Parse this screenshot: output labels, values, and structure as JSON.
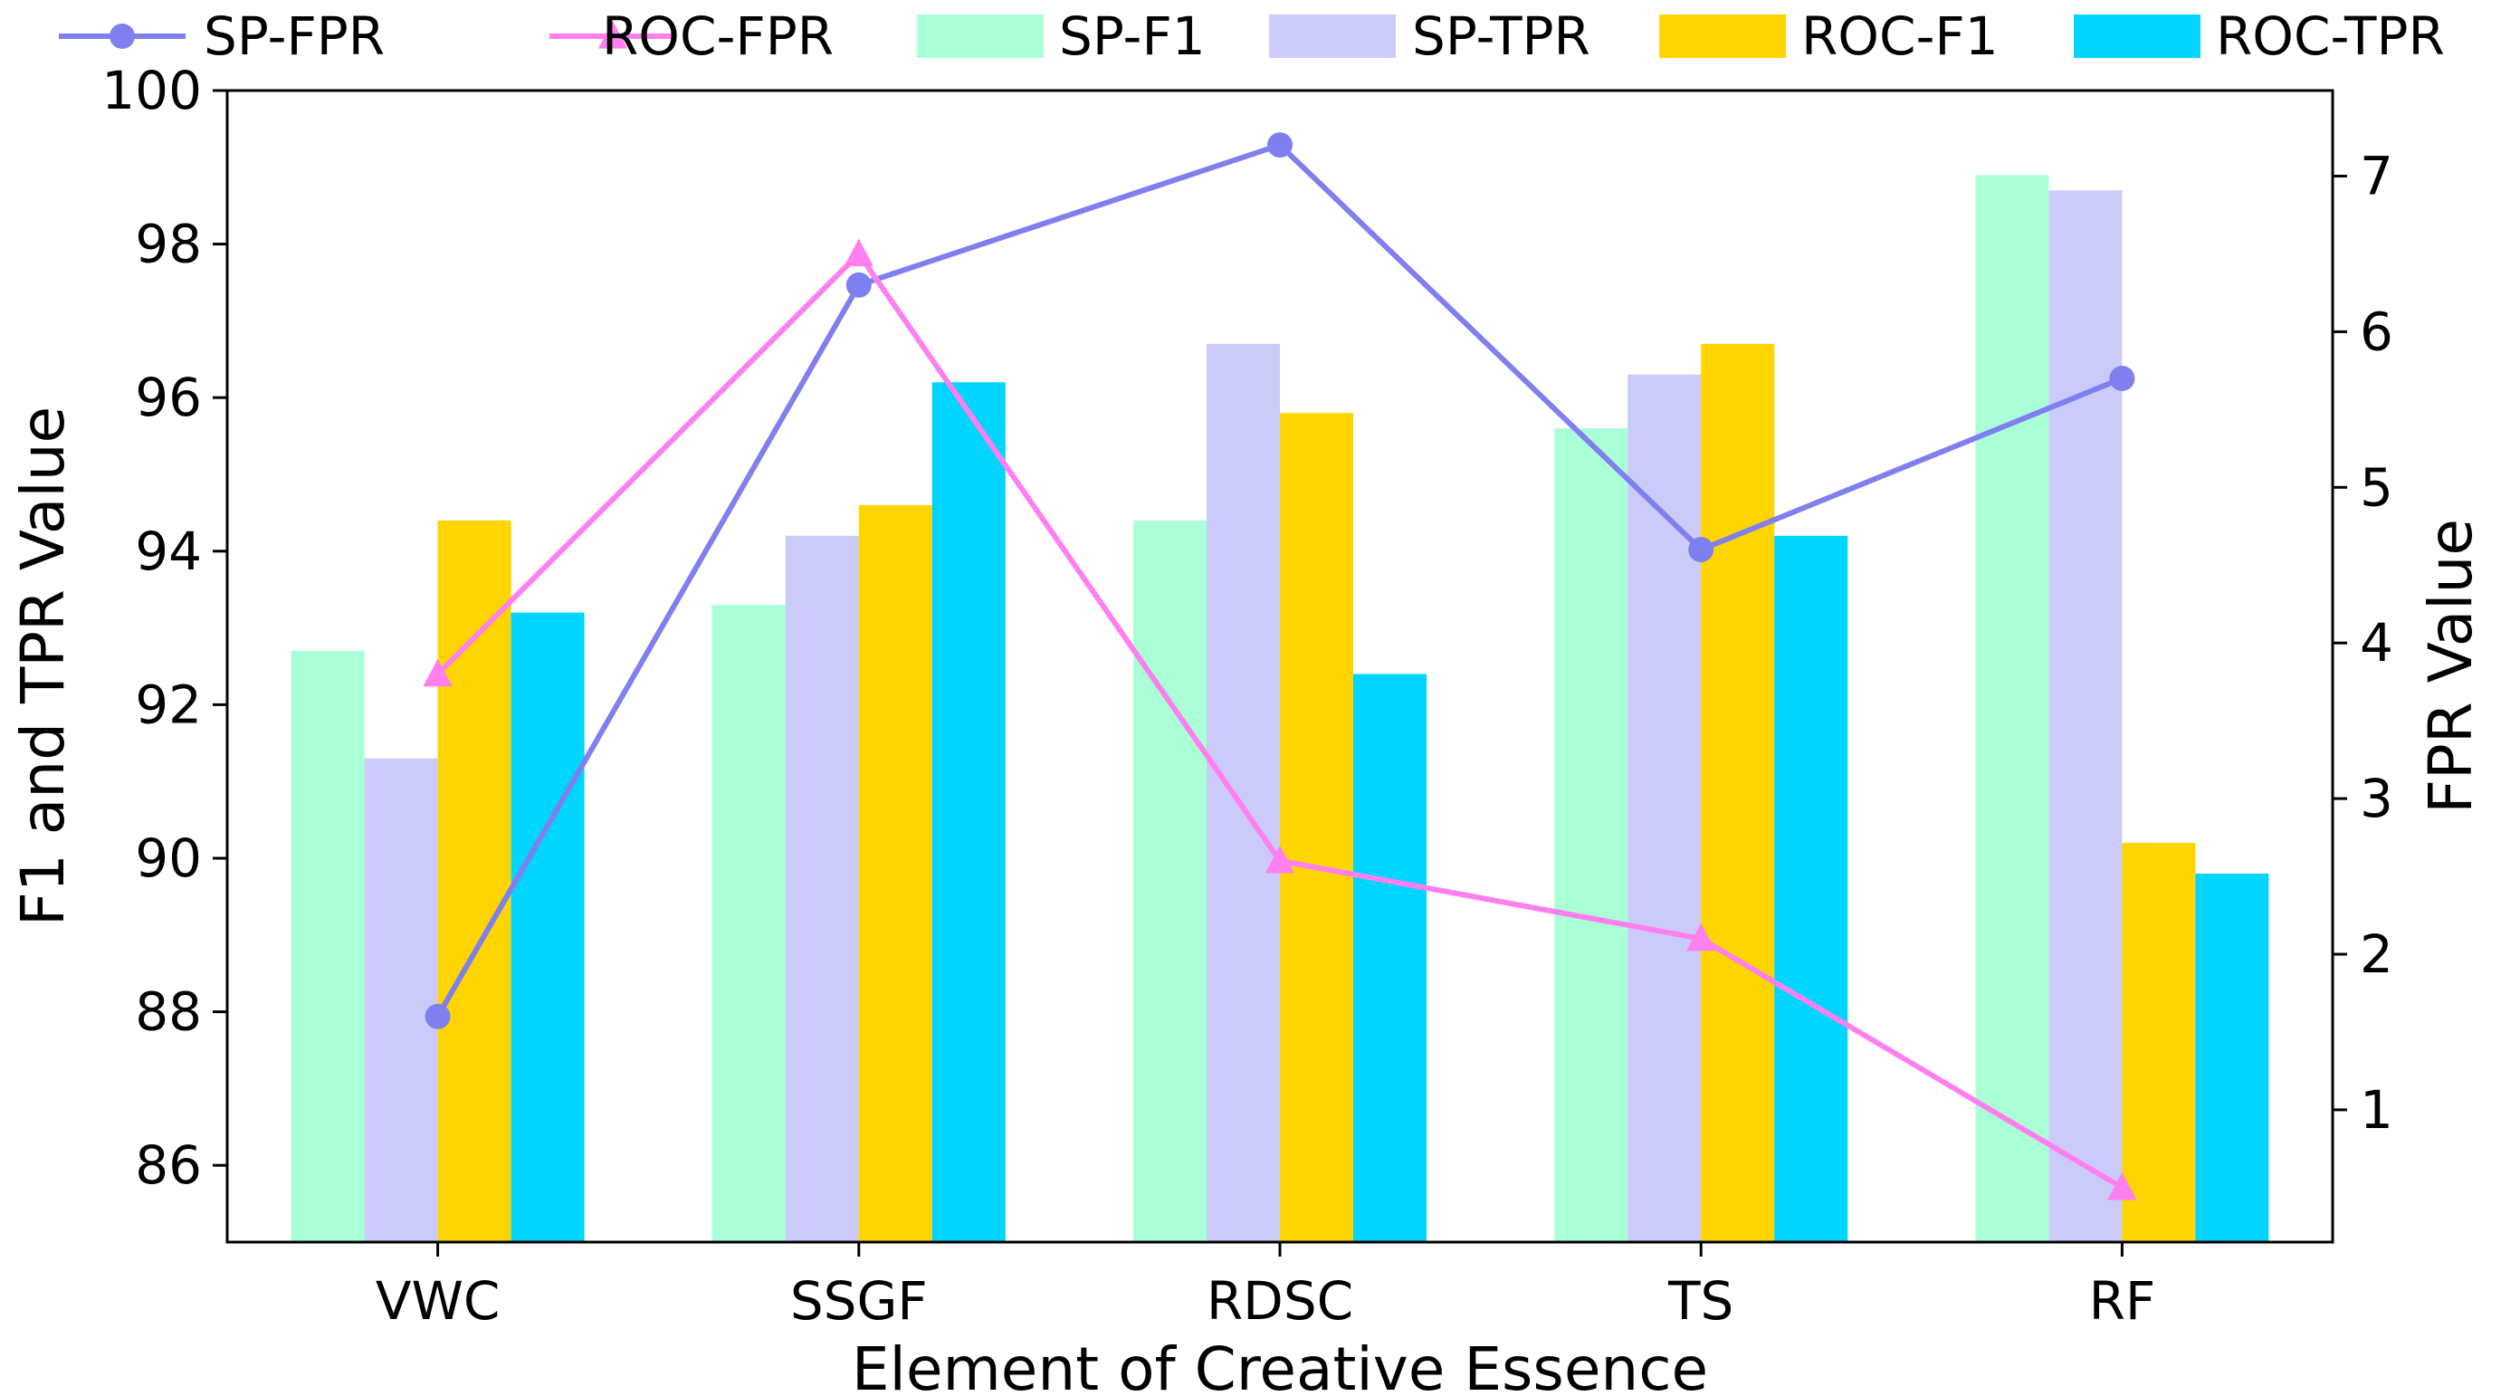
{
  "chart_data": {
    "type": "bar",
    "categories": [
      "VWC",
      "SSGF",
      "RDSC",
      "TS",
      "RF"
    ],
    "xlabel": "Element of Creative Essence",
    "ylabel": "F1 and TPR Value",
    "y2label": "FPR Value",
    "ylim": [
      85,
      100
    ],
    "y2lim": [
      0.15,
      7.55
    ],
    "yticks": [
      86,
      88,
      90,
      92,
      94,
      96,
      98,
      100
    ],
    "y2ticks": [
      1,
      2,
      3,
      4,
      5,
      6,
      7
    ],
    "legend_position": "top",
    "bar_series": [
      {
        "name": "SP-F1",
        "color": "#aaffd6",
        "values": [
          92.7,
          93.3,
          94.4,
          95.6,
          98.9
        ]
      },
      {
        "name": "SP-TPR",
        "color": "#cbcbfa",
        "values": [
          91.3,
          94.2,
          96.7,
          96.3,
          98.7
        ]
      },
      {
        "name": "ROC-F1",
        "color": "#ffd500",
        "values": [
          94.4,
          94.6,
          95.8,
          96.7,
          90.2
        ]
      },
      {
        "name": "ROC-TPR",
        "color": "#00d5ff",
        "values": [
          93.2,
          96.2,
          92.4,
          94.2,
          89.8
        ]
      }
    ],
    "line_series": [
      {
        "name": "SP-FPR",
        "color": "#7f7fef",
        "marker": "circle",
        "axis": "right",
        "values": [
          1.6,
          6.3,
          7.2,
          4.6,
          5.7
        ]
      },
      {
        "name": "ROC-FPR",
        "color": "#ff7fef",
        "marker": "triangle",
        "axis": "right",
        "values": [
          3.8,
          6.5,
          2.6,
          2.1,
          0.5
        ]
      }
    ]
  }
}
